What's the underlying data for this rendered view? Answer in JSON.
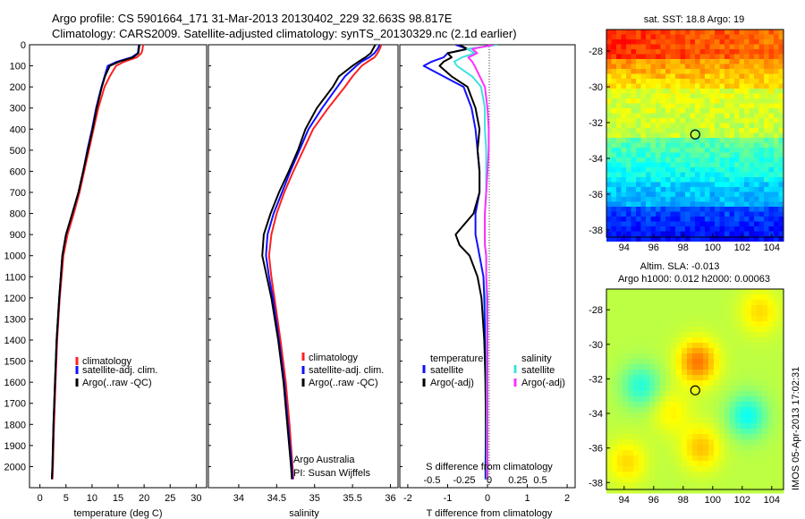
{
  "title": {
    "line1": "Argo profile: CS 5901664_171 31-Mar-2013 20130402_229 32.663S 98.817E",
    "line2": "Climatology: CARS2009. Satellite-adjusted climatology: synTS_20130329.nc (2.1d earlier)"
  },
  "colors": {
    "climatology": "#ff2020",
    "satellite_clim": "#1010ff",
    "argo": "#000000",
    "sal_satellite": "#40e0e0",
    "sal_argo": "#ff30ff"
  },
  "depth_axis": {
    "ylim": [
      0,
      2100
    ],
    "ticks": [
      "0",
      "100",
      "200",
      "300",
      "400",
      "500",
      "600",
      "700",
      "800",
      "900",
      "1000",
      "1100",
      "1200",
      "1300",
      "1400",
      "1500",
      "1600",
      "1700",
      "1800",
      "1900",
      "2000"
    ]
  },
  "chart_data": [
    {
      "type": "line",
      "name": "temperature",
      "xlabel": "temperature (deg C)",
      "xlim": [
        -2,
        32
      ],
      "xticks": [
        0,
        5,
        10,
        15,
        20,
        25,
        30
      ],
      "depth": [
        0,
        20,
        40,
        60,
        80,
        100,
        150,
        200,
        300,
        400,
        500,
        600,
        700,
        800,
        900,
        1000,
        1200,
        1400,
        1600,
        1800,
        2000,
        2060
      ],
      "series": [
        {
          "name": "climatology",
          "values": [
            19.8,
            19.7,
            19.5,
            18.6,
            16.2,
            14.6,
            13.4,
            12.4,
            11.2,
            10.3,
            9.4,
            8.5,
            7.6,
            6.5,
            5.3,
            4.5,
            3.8,
            3.3,
            3.0,
            2.7,
            2.5,
            2.4
          ]
        },
        {
          "name": "satellite-adj. clim.",
          "values": [
            19.0,
            18.9,
            18.8,
            17.6,
            14.8,
            13.0,
            12.4,
            11.8,
            10.8,
            10.0,
            9.1,
            8.3,
            7.4,
            6.2,
            5.0,
            4.3,
            3.7,
            3.2,
            2.9,
            2.6,
            2.4,
            2.3
          ]
        },
        {
          "name": "Argo(..raw -QC)",
          "values": [
            19.1,
            19.0,
            18.9,
            17.9,
            15.2,
            13.4,
            12.5,
            11.9,
            10.9,
            10.1,
            9.2,
            8.3,
            7.4,
            6.2,
            5.0,
            4.3,
            3.7,
            3.2,
            2.9,
            2.6,
            2.4,
            2.3
          ]
        }
      ],
      "legend": [
        "climatology",
        "satellite-adj. clim.",
        "Argo(..raw -QC)"
      ]
    },
    {
      "type": "line",
      "name": "salinity",
      "xlabel": "salinity",
      "xlim": [
        33.6,
        36.1
      ],
      "xticks": [
        34,
        34.5,
        35,
        35.5,
        36
      ],
      "xtick_labels": [
        "34",
        "34.5",
        "35",
        "35.5",
        "36"
      ],
      "depth": [
        0,
        20,
        40,
        60,
        80,
        100,
        150,
        200,
        300,
        400,
        500,
        600,
        700,
        800,
        900,
        1000,
        1100,
        1200,
        1400,
        1600,
        1800,
        2000,
        2060
      ],
      "series": [
        {
          "name": "climatology",
          "values": [
            35.88,
            35.86,
            35.83,
            35.79,
            35.7,
            35.62,
            35.5,
            35.4,
            35.18,
            34.98,
            34.85,
            34.72,
            34.6,
            34.5,
            34.43,
            34.4,
            34.43,
            34.47,
            34.55,
            34.62,
            34.67,
            34.71,
            34.72
          ]
        },
        {
          "name": "satellite-adj. clim.",
          "values": [
            35.86,
            35.83,
            35.79,
            35.72,
            35.62,
            35.55,
            35.4,
            35.3,
            35.1,
            34.92,
            34.8,
            34.68,
            34.57,
            34.46,
            34.38,
            34.36,
            34.4,
            34.45,
            34.53,
            34.6,
            34.65,
            34.7,
            34.71
          ]
        },
        {
          "name": "Argo(..raw -QC)",
          "values": [
            35.8,
            35.77,
            35.74,
            35.67,
            35.58,
            35.5,
            35.32,
            35.24,
            35.03,
            34.88,
            34.78,
            34.66,
            34.53,
            34.42,
            34.33,
            34.31,
            34.37,
            34.43,
            34.52,
            34.59,
            34.64,
            34.69,
            34.7
          ]
        }
      ],
      "legend": [
        "climatology",
        "satellite-adj. clim.",
        "Argo(..raw -QC)"
      ],
      "annotation": [
        "Argo Australia",
        "PI: Susan Wijffels"
      ]
    },
    {
      "type": "line",
      "name": "difference",
      "xlabel": "T difference from climatology",
      "xlim": [
        -2.2,
        2.2
      ],
      "xticks": [
        -2,
        -1,
        0,
        1,
        2
      ],
      "top_axis_label": "S difference from climatology",
      "top_ticks": [
        "-0.5",
        "-0.25",
        "0",
        "0.25",
        "0.5"
      ],
      "depth": [
        0,
        20,
        40,
        60,
        80,
        100,
        150,
        200,
        300,
        400,
        500,
        600,
        700,
        800,
        900,
        950,
        1000,
        1100,
        1200,
        1400,
        1600,
        1800,
        2000,
        2060
      ],
      "series": [
        {
          "name": "temperature satellite",
          "values": [
            -0.8,
            -0.5,
            -1.0,
            -1.1,
            -1.4,
            -1.6,
            -1.1,
            -0.6,
            -0.4,
            -0.3,
            -0.25,
            -0.2,
            -0.2,
            -0.3,
            -0.3,
            -0.25,
            -0.2,
            -0.1,
            -0.08,
            -0.06,
            -0.05,
            -0.04,
            -0.05,
            -0.05
          ]
        },
        {
          "name": "temperature Argo(-adj)",
          "values": [
            -0.7,
            -0.5,
            -1.0,
            -0.9,
            -1.1,
            -1.2,
            -0.9,
            -0.5,
            -0.3,
            -0.2,
            -0.25,
            -0.2,
            -0.2,
            -0.35,
            -0.8,
            -0.7,
            -0.45,
            -0.25,
            -0.15,
            -0.08,
            -0.05,
            -0.04,
            -0.03,
            -0.03
          ]
        },
        {
          "name": "salinity satellite",
          "values": [
            0.08,
            -0.16,
            -0.1,
            -0.2,
            -0.26,
            -0.24,
            -0.12,
            -0.05,
            -0.02,
            -0.02,
            -0.01,
            -0.01,
            -0.01,
            -0.02,
            -0.02,
            -0.02,
            -0.01,
            -0.01,
            -0.01,
            -0.005,
            -0.005,
            -0.005,
            -0.005,
            -0.005
          ]
        },
        {
          "name": "salinity Argo(-adj)",
          "values": [
            0.05,
            -0.12,
            -0.08,
            -0.15,
            -0.12,
            -0.1,
            -0.06,
            -0.02,
            0.0,
            0.01,
            0.01,
            0.0,
            -0.01,
            -0.02,
            -0.02,
            -0.02,
            -0.01,
            -0.01,
            0.0,
            0.0,
            0.0,
            0.0,
            0.0,
            0.0
          ]
        }
      ],
      "legend_temperature_title": "temperature",
      "legend_salinity_title": "salinity",
      "legend_items": [
        "satellite",
        "Argo(-adj)",
        "satellite",
        "Argo(-adj)"
      ]
    },
    {
      "type": "heatmap",
      "name": "sst-map",
      "title": "sat. SST: 18.8 Argo: 19",
      "xlim": [
        92.8,
        104.8
      ],
      "ylim": [
        -38.4,
        -26.8
      ],
      "xticks": [
        "94",
        "96",
        "98",
        "100",
        "102",
        "104"
      ],
      "yticks": [
        "-28",
        "-30",
        "-32",
        "-34",
        "-36",
        "-38"
      ],
      "marker": {
        "lon": 98.817,
        "lat": -32.663
      }
    },
    {
      "type": "heatmap",
      "name": "sla-map",
      "title_line1": "Altim. SLA: -0.013",
      "title_line2": "Argo h1000: 0.012 h2000: 0.00063",
      "xlim": [
        92.8,
        104.8
      ],
      "ylim": [
        -38.4,
        -26.8
      ],
      "xticks": [
        "94",
        "96",
        "98",
        "100",
        "102",
        "104"
      ],
      "yticks": [
        "-28",
        "-30",
        "-32",
        "-34",
        "-36",
        "-38"
      ],
      "marker": {
        "lon": 98.817,
        "lat": -32.663
      }
    }
  ],
  "side_stamp": "IMOS 05-Apr-2013 17:02:31"
}
